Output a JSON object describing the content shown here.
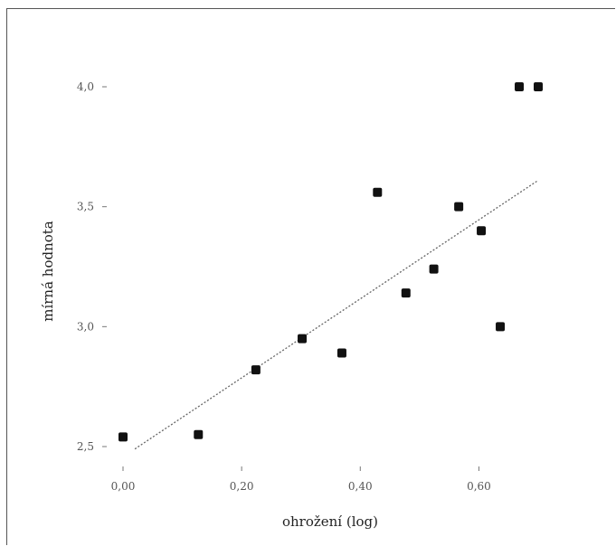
{
  "chart_data": {
    "type": "scatter",
    "xlabel": "ohrožení (log)",
    "ylabel": "mírná hodnota",
    "x_ticks": [
      {
        "value": 0.0,
        "label": "0,00"
      },
      {
        "value": 0.2,
        "label": "0,20"
      },
      {
        "value": 0.4,
        "label": "0,40"
      },
      {
        "value": 0.6,
        "label": "0,60"
      }
    ],
    "y_ticks": [
      {
        "value": 2.5,
        "label": "2,5"
      },
      {
        "value": 3.0,
        "label": "3,0"
      },
      {
        "value": 3.5,
        "label": "3,5"
      },
      {
        "value": 4.0,
        "label": "4,0"
      }
    ],
    "xlim": [
      0.0,
      0.7
    ],
    "ylim": [
      2.5,
      4.0
    ],
    "grid": false,
    "points": [
      {
        "x": 0.0,
        "y": 2.54
      },
      {
        "x": 0.127,
        "y": 2.55
      },
      {
        "x": 0.224,
        "y": 2.82
      },
      {
        "x": 0.302,
        "y": 2.95
      },
      {
        "x": 0.369,
        "y": 2.89
      },
      {
        "x": 0.429,
        "y": 3.56
      },
      {
        "x": 0.477,
        "y": 3.14
      },
      {
        "x": 0.524,
        "y": 3.24
      },
      {
        "x": 0.566,
        "y": 3.5
      },
      {
        "x": 0.604,
        "y": 3.4
      },
      {
        "x": 0.636,
        "y": 3.0
      },
      {
        "x": 0.668,
        "y": 4.0
      },
      {
        "x": 0.7,
        "y": 4.0
      }
    ],
    "trendline": {
      "x": [
        0.02,
        0.7
      ],
      "y": [
        2.49,
        3.61
      ],
      "style": "dotted"
    },
    "colors": {
      "points": "#111111",
      "trendline": "#666666",
      "text": "#555555"
    }
  }
}
